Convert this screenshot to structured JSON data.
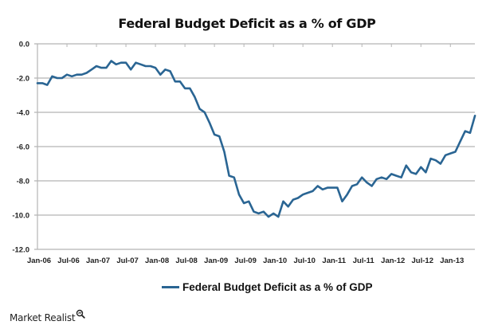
{
  "chart_data": {
    "type": "line",
    "title": "Federal Budget Deficit as a % of GDP",
    "xlabel": "",
    "ylabel": "",
    "ylim": [
      -12.0,
      0.0
    ],
    "yticks": [
      "0.0",
      "-2.0",
      "-4.0",
      "-6.0",
      "-8.0",
      "-10.0",
      "-12.0"
    ],
    "ytick_values": [
      0,
      -2,
      -4,
      -6,
      -8,
      -10,
      -12
    ],
    "xtick_labels": [
      "Jan-06",
      "Jul-06",
      "Jan-07",
      "Jul-07",
      "Jan-08",
      "Jul-08",
      "Jan-09",
      "Jul-09",
      "Jan-10",
      "Jul-10",
      "Jan-11",
      "Jul-11",
      "Jan-12",
      "Jul-12",
      "Jan-13"
    ],
    "x_start": "Jan-06",
    "x_interval": "monthly",
    "grid": true,
    "legend": "bottom",
    "series": [
      {
        "name": "Federal Budget Deficit as a % of GDP",
        "color": "#2a6593",
        "values": [
          -2.3,
          -2.3,
          -2.4,
          -1.9,
          -2.0,
          -2.0,
          -1.8,
          -1.9,
          -1.8,
          -1.8,
          -1.7,
          -1.5,
          -1.3,
          -1.4,
          -1.4,
          -1.0,
          -1.2,
          -1.1,
          -1.1,
          -1.5,
          -1.1,
          -1.2,
          -1.3,
          -1.3,
          -1.4,
          -1.8,
          -1.5,
          -1.6,
          -2.2,
          -2.2,
          -2.6,
          -2.6,
          -3.1,
          -3.8,
          -4.0,
          -4.6,
          -5.3,
          -5.4,
          -6.3,
          -7.7,
          -7.8,
          -8.8,
          -9.3,
          -9.2,
          -9.8,
          -9.9,
          -9.8,
          -10.1,
          -9.9,
          -10.1,
          -9.2,
          -9.5,
          -9.1,
          -9.0,
          -8.8,
          -8.7,
          -8.6,
          -8.3,
          -8.5,
          -8.4,
          -8.4,
          -8.4,
          -9.2,
          -8.8,
          -8.3,
          -8.2,
          -7.8,
          -8.1,
          -8.3,
          -7.9,
          -7.8,
          -7.9,
          -7.6,
          -7.7,
          -7.8,
          -7.1,
          -7.5,
          -7.6,
          -7.2,
          -7.5,
          -6.7,
          -6.8,
          -7.0,
          -6.5,
          -6.4,
          -6.3,
          -5.7,
          -5.1,
          -5.2,
          -4.2
        ]
      }
    ]
  },
  "legend": {
    "label": "Federal Budget Deficit as a % of GDP"
  },
  "brand": {
    "name": "Market Realist"
  }
}
